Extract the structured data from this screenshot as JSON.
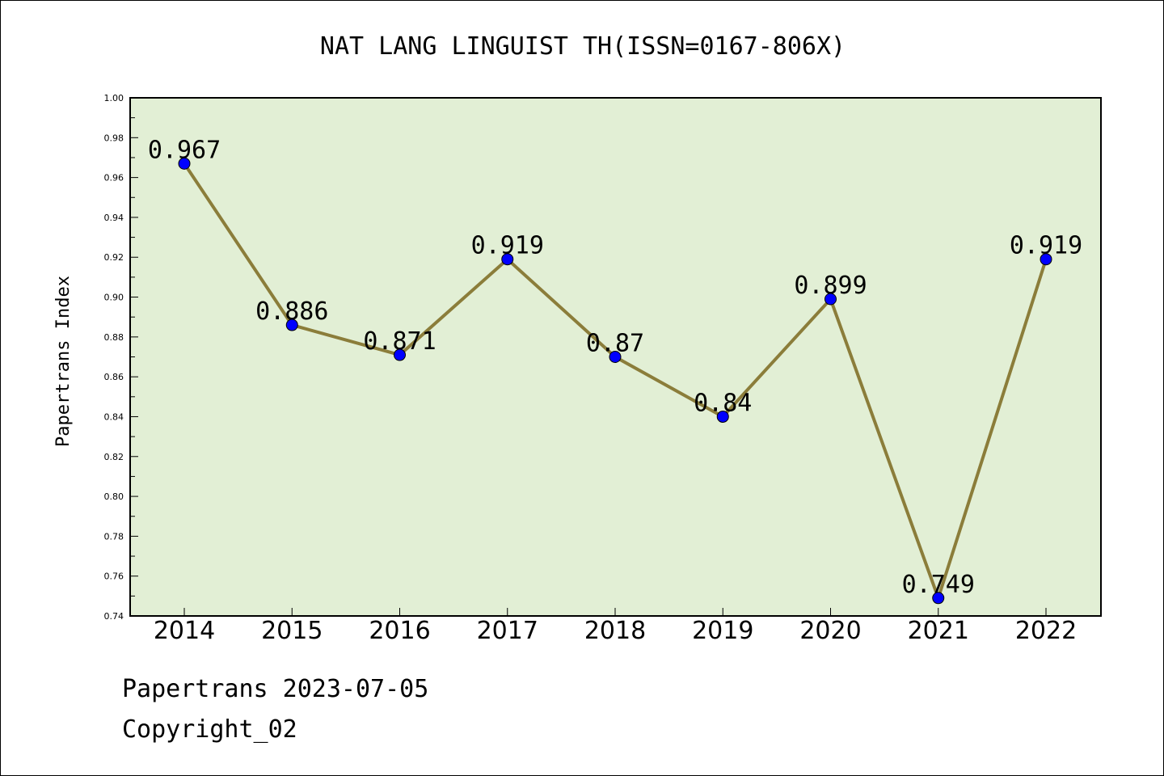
{
  "chart_data": {
    "type": "line",
    "title": "NAT LANG LINGUIST TH(ISSN=0167-806X)",
    "xlabel": "",
    "ylabel": "Papertrans Index",
    "x": [
      "2014",
      "2015",
      "2016",
      "2017",
      "2018",
      "2019",
      "2020",
      "2021",
      "2022"
    ],
    "series": [
      {
        "values": [
          0.967,
          0.886,
          0.871,
          0.919,
          0.87,
          0.84,
          0.899,
          0.749,
          0.919
        ],
        "labels": [
          "0.967",
          "0.886",
          "0.871",
          "0.919",
          "0.87",
          "0.84",
          "0.899",
          "0.749",
          "0.919"
        ]
      }
    ],
    "ylim": [
      0.74,
      1.0
    ],
    "yticks": [
      "0.74",
      "0.76",
      "0.78",
      "0.80",
      "0.82",
      "0.84",
      "0.86",
      "0.88",
      "0.90",
      "0.92",
      "0.94",
      "0.96",
      "0.98",
      "1.00"
    ],
    "grid": false,
    "legend": "none",
    "colors": {
      "plot_background": "#e2efd5",
      "line": "#8b7d3a",
      "marker": "#0000ff"
    }
  },
  "footer": {
    "date_text": "Papertrans 2023-07-05",
    "copyright_text": "Copyright_02"
  }
}
